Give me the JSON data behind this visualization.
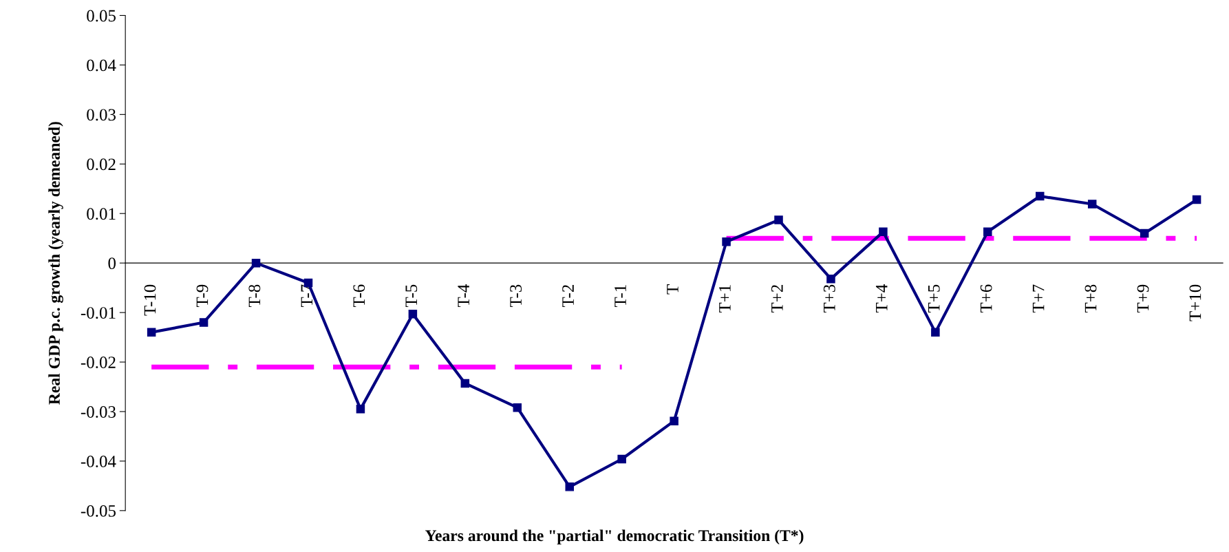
{
  "chart_data": {
    "type": "line",
    "xlabel": "Years around the \"partial\" democratic Transition (T*)",
    "ylabel": "Real GDP p.c. growth (yearly demeaned)",
    "categories": [
      "T-10",
      "T-9",
      "T-8",
      "T-7",
      "T-6",
      "T-5",
      "T-4",
      "T-3",
      "T-2",
      "T-1",
      "T",
      "T+1",
      "T+2",
      "T+3",
      "T+4",
      "T+5",
      "T+6",
      "T+7",
      "T+8",
      "T+9",
      "T+10"
    ],
    "series": [
      {
        "color": "#000080",
        "marker": "square",
        "line_style": "solid",
        "values": [
          -0.014,
          -0.012,
          0.0,
          -0.004,
          -0.0295,
          -0.0103,
          -0.0243,
          -0.0292,
          -0.0452,
          -0.0396,
          -0.0319,
          0.0043,
          0.0087,
          -0.0032,
          0.0063,
          -0.014,
          0.0063,
          0.0135,
          0.0119,
          0.006,
          0.0128
        ]
      },
      {
        "color": "#ff00ff",
        "marker": "none",
        "line_style": "dashed",
        "values": [
          -0.021,
          -0.021,
          -0.021,
          -0.021,
          -0.021,
          -0.021,
          -0.021,
          -0.021,
          -0.021,
          -0.021,
          null,
          null,
          null,
          null,
          null,
          null,
          null,
          null,
          null,
          null,
          null
        ]
      },
      {
        "color": "#ff00ff",
        "marker": "none",
        "line_style": "dashed",
        "values": [
          null,
          null,
          null,
          null,
          null,
          null,
          null,
          null,
          null,
          null,
          null,
          0.005,
          0.005,
          0.005,
          0.005,
          0.005,
          0.005,
          0.005,
          0.005,
          0.005,
          0.005
        ]
      }
    ],
    "ylim": [
      -0.05,
      0.05
    ],
    "yticks": [
      -0.05,
      -0.04,
      -0.03,
      -0.02,
      -0.01,
      0,
      0.01,
      0.02,
      0.03,
      0.04,
      0.05
    ],
    "grid": false,
    "legend": false
  }
}
